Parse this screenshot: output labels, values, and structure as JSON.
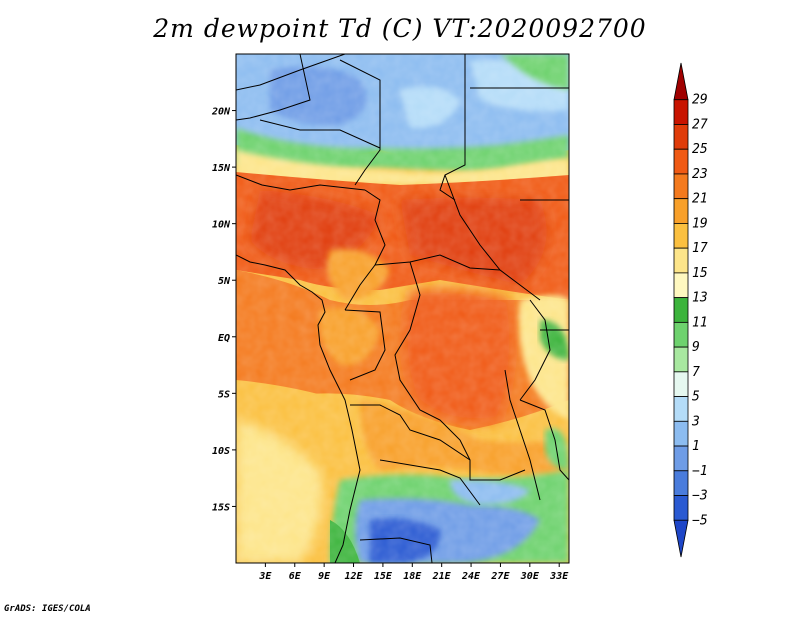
{
  "title": "2m dewpoint Td (C) VT:2020092700",
  "credit": "GrADS: IGES/COLA",
  "map": {
    "lat_range": [
      -20,
      25
    ],
    "lon_range": [
      0,
      34
    ],
    "lat_labels": [
      "20N",
      "15N",
      "10N",
      "5N",
      "EQ",
      "5S",
      "10S",
      "15S"
    ],
    "lat_values": [
      20,
      15,
      10,
      5,
      0,
      -5,
      -10,
      -15
    ],
    "lon_labels": [
      "3E",
      "6E",
      "9E",
      "12E",
      "15E",
      "18E",
      "21E",
      "24E",
      "27E",
      "30E",
      "33E"
    ],
    "lon_values": [
      3,
      6,
      9,
      12,
      15,
      18,
      21,
      24,
      27,
      30,
      33
    ]
  },
  "colorbar": {
    "labels": [
      "29",
      "27",
      "25",
      "23",
      "21",
      "19",
      "17",
      "15",
      "13",
      "11",
      "9",
      "7",
      "5",
      "3",
      "1",
      "−1",
      "−3",
      "−5"
    ],
    "colors": [
      "#a00000",
      "#c81400",
      "#e03c0a",
      "#f05a14",
      "#f47a1e",
      "#f8a02a",
      "#fbc040",
      "#fde58a",
      "#fff8c0",
      "#3cb43c",
      "#6ed26e",
      "#a8e8a0",
      "#e6f8f0",
      "#b4dcf8",
      "#8cbcf0",
      "#6e9ce6",
      "#4a7cdc",
      "#2a5ad2",
      "#1e46c8"
    ]
  }
}
